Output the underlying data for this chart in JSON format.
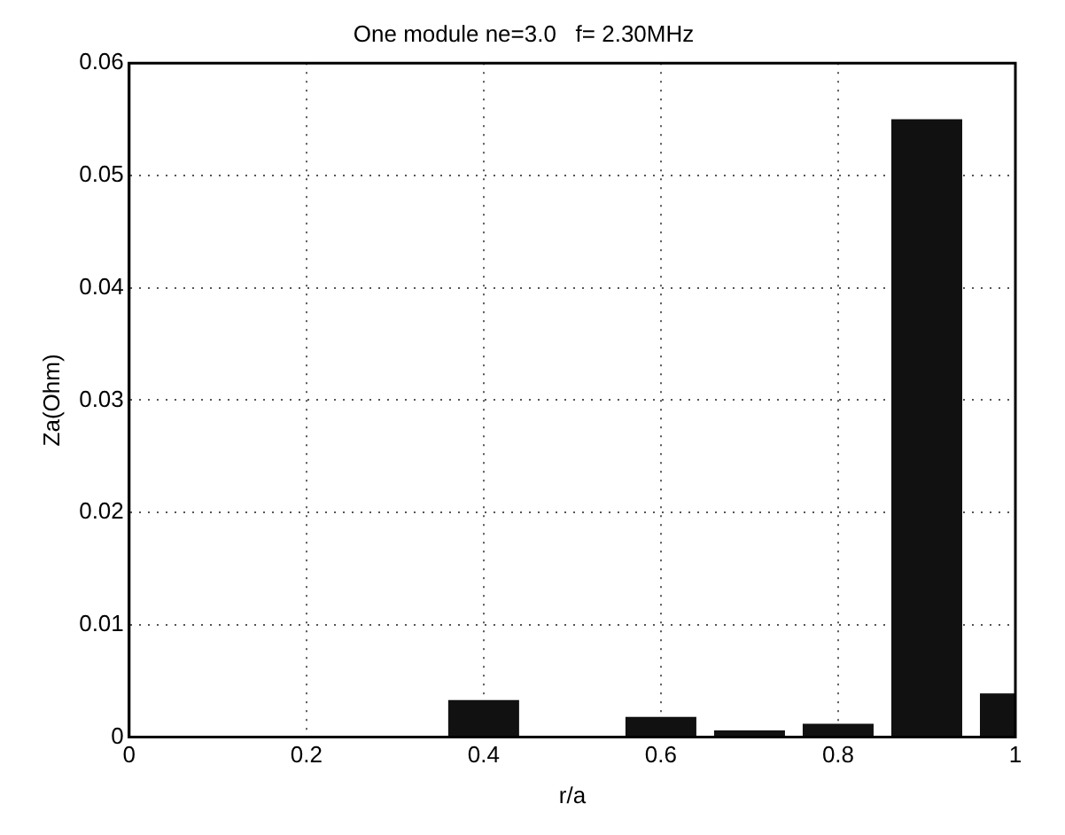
{
  "chart_data": {
    "type": "bar",
    "title": "One module ne=3.0   f= 2.30MHz",
    "xlabel": "r/a",
    "ylabel": "Za(Ohm)",
    "x": [
      0.4,
      0.6,
      0.7,
      0.8,
      0.9,
      1.0
    ],
    "values": [
      0.0033,
      0.0018,
      0.0006,
      0.0012,
      0.055,
      0.0039
    ],
    "color": "#111111",
    "xlim": [
      0,
      1
    ],
    "xticks": [
      0,
      0.2,
      0.4,
      0.6,
      0.8,
      1
    ],
    "ylim": [
      0,
      0.06
    ],
    "yticks": [
      0,
      0.01,
      0.02,
      0.03,
      0.04,
      0.05,
      0.06
    ],
    "grid": true,
    "legend": false
  }
}
